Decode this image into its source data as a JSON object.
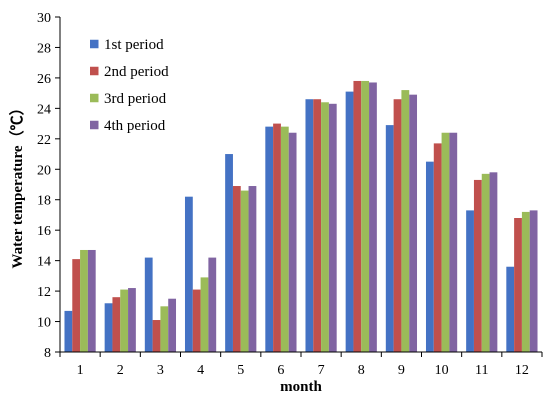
{
  "chart_data": {
    "type": "bar",
    "title": "",
    "xlabel": "month",
    "ylabel": "Water temperature（℃）",
    "ylim": [
      8,
      30
    ],
    "yticks": [
      8,
      10,
      12,
      14,
      16,
      18,
      20,
      22,
      24,
      26,
      28,
      30
    ],
    "grid": false,
    "legend_position": "top-left",
    "categories": [
      "1",
      "2",
      "3",
      "4",
      "5",
      "6",
      "7",
      "8",
      "9",
      "10",
      "11",
      "12"
    ],
    "series": [
      {
        "name": "1st period",
        "color": "#4472C4",
        "values": [
          10.7,
          11.2,
          14.2,
          18.2,
          21.0,
          22.8,
          24.6,
          25.1,
          22.9,
          20.5,
          17.3,
          13.6
        ]
      },
      {
        "name": "2nd period",
        "color": "#C0504D",
        "values": [
          14.1,
          11.6,
          10.1,
          12.1,
          18.9,
          23.0,
          24.6,
          25.8,
          24.6,
          21.7,
          19.3,
          16.8
        ]
      },
      {
        "name": "3rd period",
        "color": "#9BBB59",
        "values": [
          14.7,
          12.1,
          11.0,
          12.9,
          18.6,
          22.8,
          24.4,
          25.8,
          25.2,
          22.4,
          19.7,
          17.2
        ]
      },
      {
        "name": "4th period",
        "color": "#8064A2",
        "values": [
          14.7,
          12.2,
          11.5,
          14.2,
          18.9,
          22.4,
          24.3,
          25.7,
          24.9,
          22.4,
          19.8,
          17.3
        ]
      }
    ]
  }
}
